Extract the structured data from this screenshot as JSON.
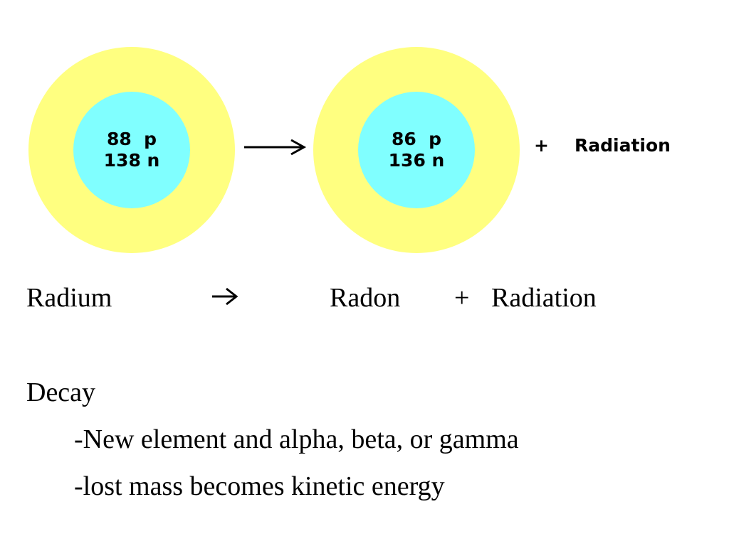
{
  "colors": {
    "electron_cloud": "#ffff80",
    "nucleus": "#80ffff",
    "text": "#000000"
  },
  "diagram": {
    "parent": {
      "protons": "88  p",
      "neutrons": "138 n"
    },
    "reaction_arrow": "arrow-right-icon",
    "daughter": {
      "protons": "86  p",
      "neutrons": "136 n"
    },
    "plus": "+",
    "radiation": "Radiation"
  },
  "equation": {
    "reactant": "Radium",
    "arrow": "arrow-right-icon",
    "product": "Radon",
    "plus": "+",
    "radiation": "Radiation"
  },
  "notes": {
    "heading": "Decay",
    "items": [
      "-New element and alpha, beta, or gamma",
      "-lost mass becomes kinetic energy"
    ]
  }
}
